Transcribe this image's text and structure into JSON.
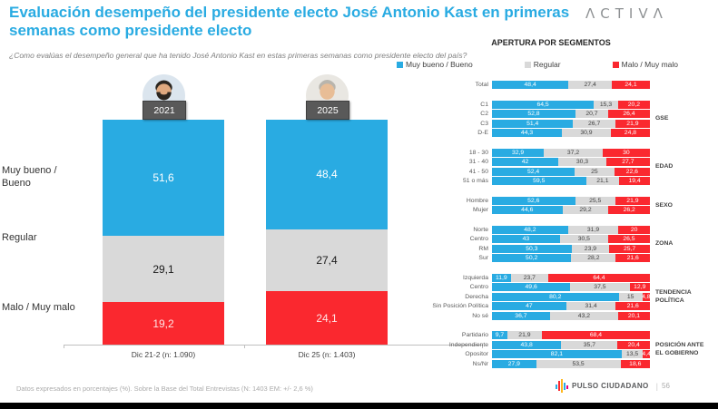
{
  "header": {
    "title": "Evaluación desempeño del presidente electo  José Antonio Kast en primeras semanas como presidente electo",
    "subtitle": "¿Como evalúas el desempeño general que ha tenido José Antonio Kast en estas primeras semanas como presidente electo del país?",
    "brand": "ΛCTIVΛ"
  },
  "legend": [
    {
      "label": "Muy bueno / Bueno",
      "color": "#29ABE2"
    },
    {
      "label": "Regular",
      "color": "#D9D9D9"
    },
    {
      "label": "Malo / Muy malo",
      "color": "#FA282F"
    }
  ],
  "colors": {
    "accent_blue": "#29ABE2",
    "series": [
      "#29ABE2",
      "#D9D9D9",
      "#FA282F"
    ],
    "year_tag_bg": "#595959",
    "brand_gray": "#8E9193"
  },
  "chart_data": [
    {
      "type": "bar",
      "subtype": "stacked_column",
      "categories": [
        "Dic 21-2 (n: 1.090)",
        "Dic 25 (n: 1.403)"
      ],
      "column_tags": [
        "2021",
        "2025"
      ],
      "series": [
        {
          "name": "Muy bueno / Bueno",
          "values": [
            51.6,
            48.4
          ]
        },
        {
          "name": "Regular",
          "values": [
            29.1,
            27.4
          ]
        },
        {
          "name": "Malo / Muy malo",
          "values": [
            19.2,
            24.1
          ]
        }
      ],
      "ylim": [
        0,
        100
      ],
      "value_format": "comma_decimal",
      "legend_position": "top-right",
      "grid": false
    },
    {
      "type": "bar",
      "subtype": "stacked_horizontal_100",
      "title": "APERTURA POR SEGMENTOS",
      "series_names": [
        "Muy bueno / Bueno",
        "Regular",
        "Malo / Muy malo"
      ],
      "groups": [
        {
          "label": "",
          "rows": [
            {
              "category": "Total",
              "values": [
                48.4,
                27.4,
                24.1
              ]
            }
          ]
        },
        {
          "label": "GSE",
          "rows": [
            {
              "category": "C1",
              "values": [
                64.5,
                15.3,
                20.2
              ]
            },
            {
              "category": "C2",
              "values": [
                52.8,
                20.7,
                26.4
              ]
            },
            {
              "category": "C3",
              "values": [
                51.4,
                26.7,
                21.9
              ]
            },
            {
              "category": "D-E",
              "values": [
                44.3,
                30.9,
                24.8
              ]
            }
          ]
        },
        {
          "label": "EDAD",
          "rows": [
            {
              "category": "18 - 30",
              "values": [
                32.9,
                37.2,
                30
              ]
            },
            {
              "category": "31 - 40",
              "values": [
                42,
                30.3,
                27.7
              ]
            },
            {
              "category": "41 - 50",
              "values": [
                52.4,
                25,
                22.6
              ]
            },
            {
              "category": "51 o más",
              "values": [
                59.5,
                21.1,
                19.4
              ]
            }
          ]
        },
        {
          "label": "SEXO",
          "rows": [
            {
              "category": "Hombre",
              "values": [
                52.6,
                25.5,
                21.9
              ]
            },
            {
              "category": "Mujer",
              "values": [
                44.6,
                29.2,
                26.2
              ]
            }
          ]
        },
        {
          "label": "ZONA",
          "rows": [
            {
              "category": "Norte",
              "values": [
                48.2,
                31.9,
                20
              ]
            },
            {
              "category": "Centro",
              "values": [
                43,
                30.5,
                26.5
              ]
            },
            {
              "category": "RM",
              "values": [
                50.3,
                23.9,
                25.7
              ]
            },
            {
              "category": "Sur",
              "values": [
                50.2,
                28.2,
                21.6
              ]
            }
          ]
        },
        {
          "label": "TENDENCIA POLÍTICA",
          "rows": [
            {
              "category": "Izquierda",
              "values": [
                11.9,
                23.7,
                64.4
              ]
            },
            {
              "category": "Centro",
              "values": [
                49.6,
                37.5,
                12.9
              ]
            },
            {
              "category": "Derecha",
              "values": [
                80.2,
                15,
                4.8
              ]
            },
            {
              "category": "Sin Posición Política",
              "values": [
                47,
                31.4,
                21.6
              ]
            },
            {
              "category": "No sé",
              "values": [
                36.7,
                43.2,
                20.1
              ]
            }
          ]
        },
        {
          "label": "POSICIÓN ANTE EL GOBIERNO",
          "rows": [
            {
              "category": "Partidario",
              "values": [
                9.7,
                21.9,
                68.4
              ]
            },
            {
              "category": "Independiente",
              "values": [
                43.8,
                35.7,
                20.4
              ]
            },
            {
              "category": "Opositor",
              "values": [
                82.1,
                13.5,
                4.4
              ]
            },
            {
              "category": "Ns/Nr",
              "values": [
                27.9,
                53.5,
                18.6
              ]
            }
          ]
        }
      ]
    }
  ],
  "footer": {
    "note": "Datos expresados en porcentajes (%). Sobre la Base del Total Entrevistas (N: 1403  EM: +/- 2,6 %)",
    "brand": "PULSO CIUDADANO",
    "page_number": "56"
  }
}
